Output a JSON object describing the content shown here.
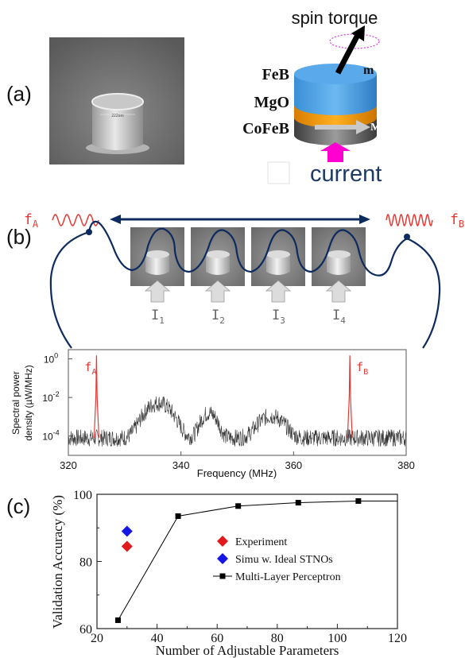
{
  "panels": {
    "a": {
      "label": "(a)",
      "sem_scale_text": "222nm",
      "spin_torque": "spin torque",
      "layers": [
        "FeB",
        "MgO",
        "CoFeB"
      ],
      "m_label": "m",
      "M_label": "M",
      "current_label": "current"
    },
    "b": {
      "label": "(b)",
      "fA_main": "f",
      "fA_sub": "A",
      "fB_main": "f",
      "fB_sub": "B",
      "currents": [
        {
          "main": "I",
          "sub": "1"
        },
        {
          "main": "I",
          "sub": "2"
        },
        {
          "main": "I",
          "sub": "3"
        },
        {
          "main": "I",
          "sub": "4"
        }
      ]
    },
    "c": {
      "label": "(c)"
    }
  },
  "chart_data": [
    {
      "type": "line",
      "title": "",
      "xlabel": "Frequency (MHz)",
      "ylabel": "Spectral power density (µW/MHz)",
      "ylabel_lines": [
        "Spectral power",
        "density (µW/MHz)"
      ],
      "xlim": [
        320,
        380
      ],
      "x_ticks": [
        320,
        340,
        360,
        380
      ],
      "y_scale": "log",
      "ylim": [
        1e-05,
        3
      ],
      "y_ticks": [
        {
          "value": 1,
          "main": "10",
          "sup": "0"
        },
        {
          "value": 0.01,
          "main": "10",
          "sup": "-2"
        },
        {
          "value": 0.0001,
          "main": "10",
          "sup": "-4"
        }
      ],
      "series": [
        {
          "kind": "noise-spectrum",
          "color": "#333333",
          "peaks": [
            {
              "x": 336,
              "y": 0.005
            },
            {
              "x": 345,
              "y": 0.0015
            },
            {
              "x": 356,
              "y": 0.001
            }
          ],
          "baseline_y": 8e-05
        },
        {
          "kind": "drive-lines",
          "color": "#e53935",
          "peaks": [
            {
              "x": 325,
              "y": 1.5
            },
            {
              "x": 370,
              "y": 1.5
            }
          ]
        }
      ],
      "annotations": [
        {
          "text_main": "f",
          "text_sub": "A",
          "x": 325
        },
        {
          "text_main": "f",
          "text_sub": "B",
          "x": 370
        }
      ]
    },
    {
      "type": "scatter",
      "title": "",
      "xlabel": "Number of Adjustable Parameters",
      "ylabel": "Validation Accuracy (%)",
      "xlim": [
        20,
        120
      ],
      "ylim": [
        60,
        100
      ],
      "x_ticks": [
        20,
        40,
        60,
        80,
        100,
        120
      ],
      "y_ticks": [
        60,
        80,
        100
      ],
      "legend_position": "center-right",
      "series": [
        {
          "name": "Experiment",
          "marker": "diamond",
          "color": "#e31a1c",
          "points": [
            [
              30,
              84.5
            ]
          ]
        },
        {
          "name": "Simu w. Ideal STNOs",
          "marker": "diamond",
          "color": "#1515e6",
          "points": [
            [
              30,
              89
            ]
          ]
        },
        {
          "name": "Multi-Layer Perceptron",
          "marker": "square",
          "color": "#000000",
          "line": true,
          "points": [
            [
              27,
              62.5
            ],
            [
              47,
              93.5
            ],
            [
              67,
              96.5
            ],
            [
              87,
              97.5
            ],
            [
              107,
              98
            ],
            [
              120,
              98
            ]
          ]
        }
      ]
    }
  ]
}
